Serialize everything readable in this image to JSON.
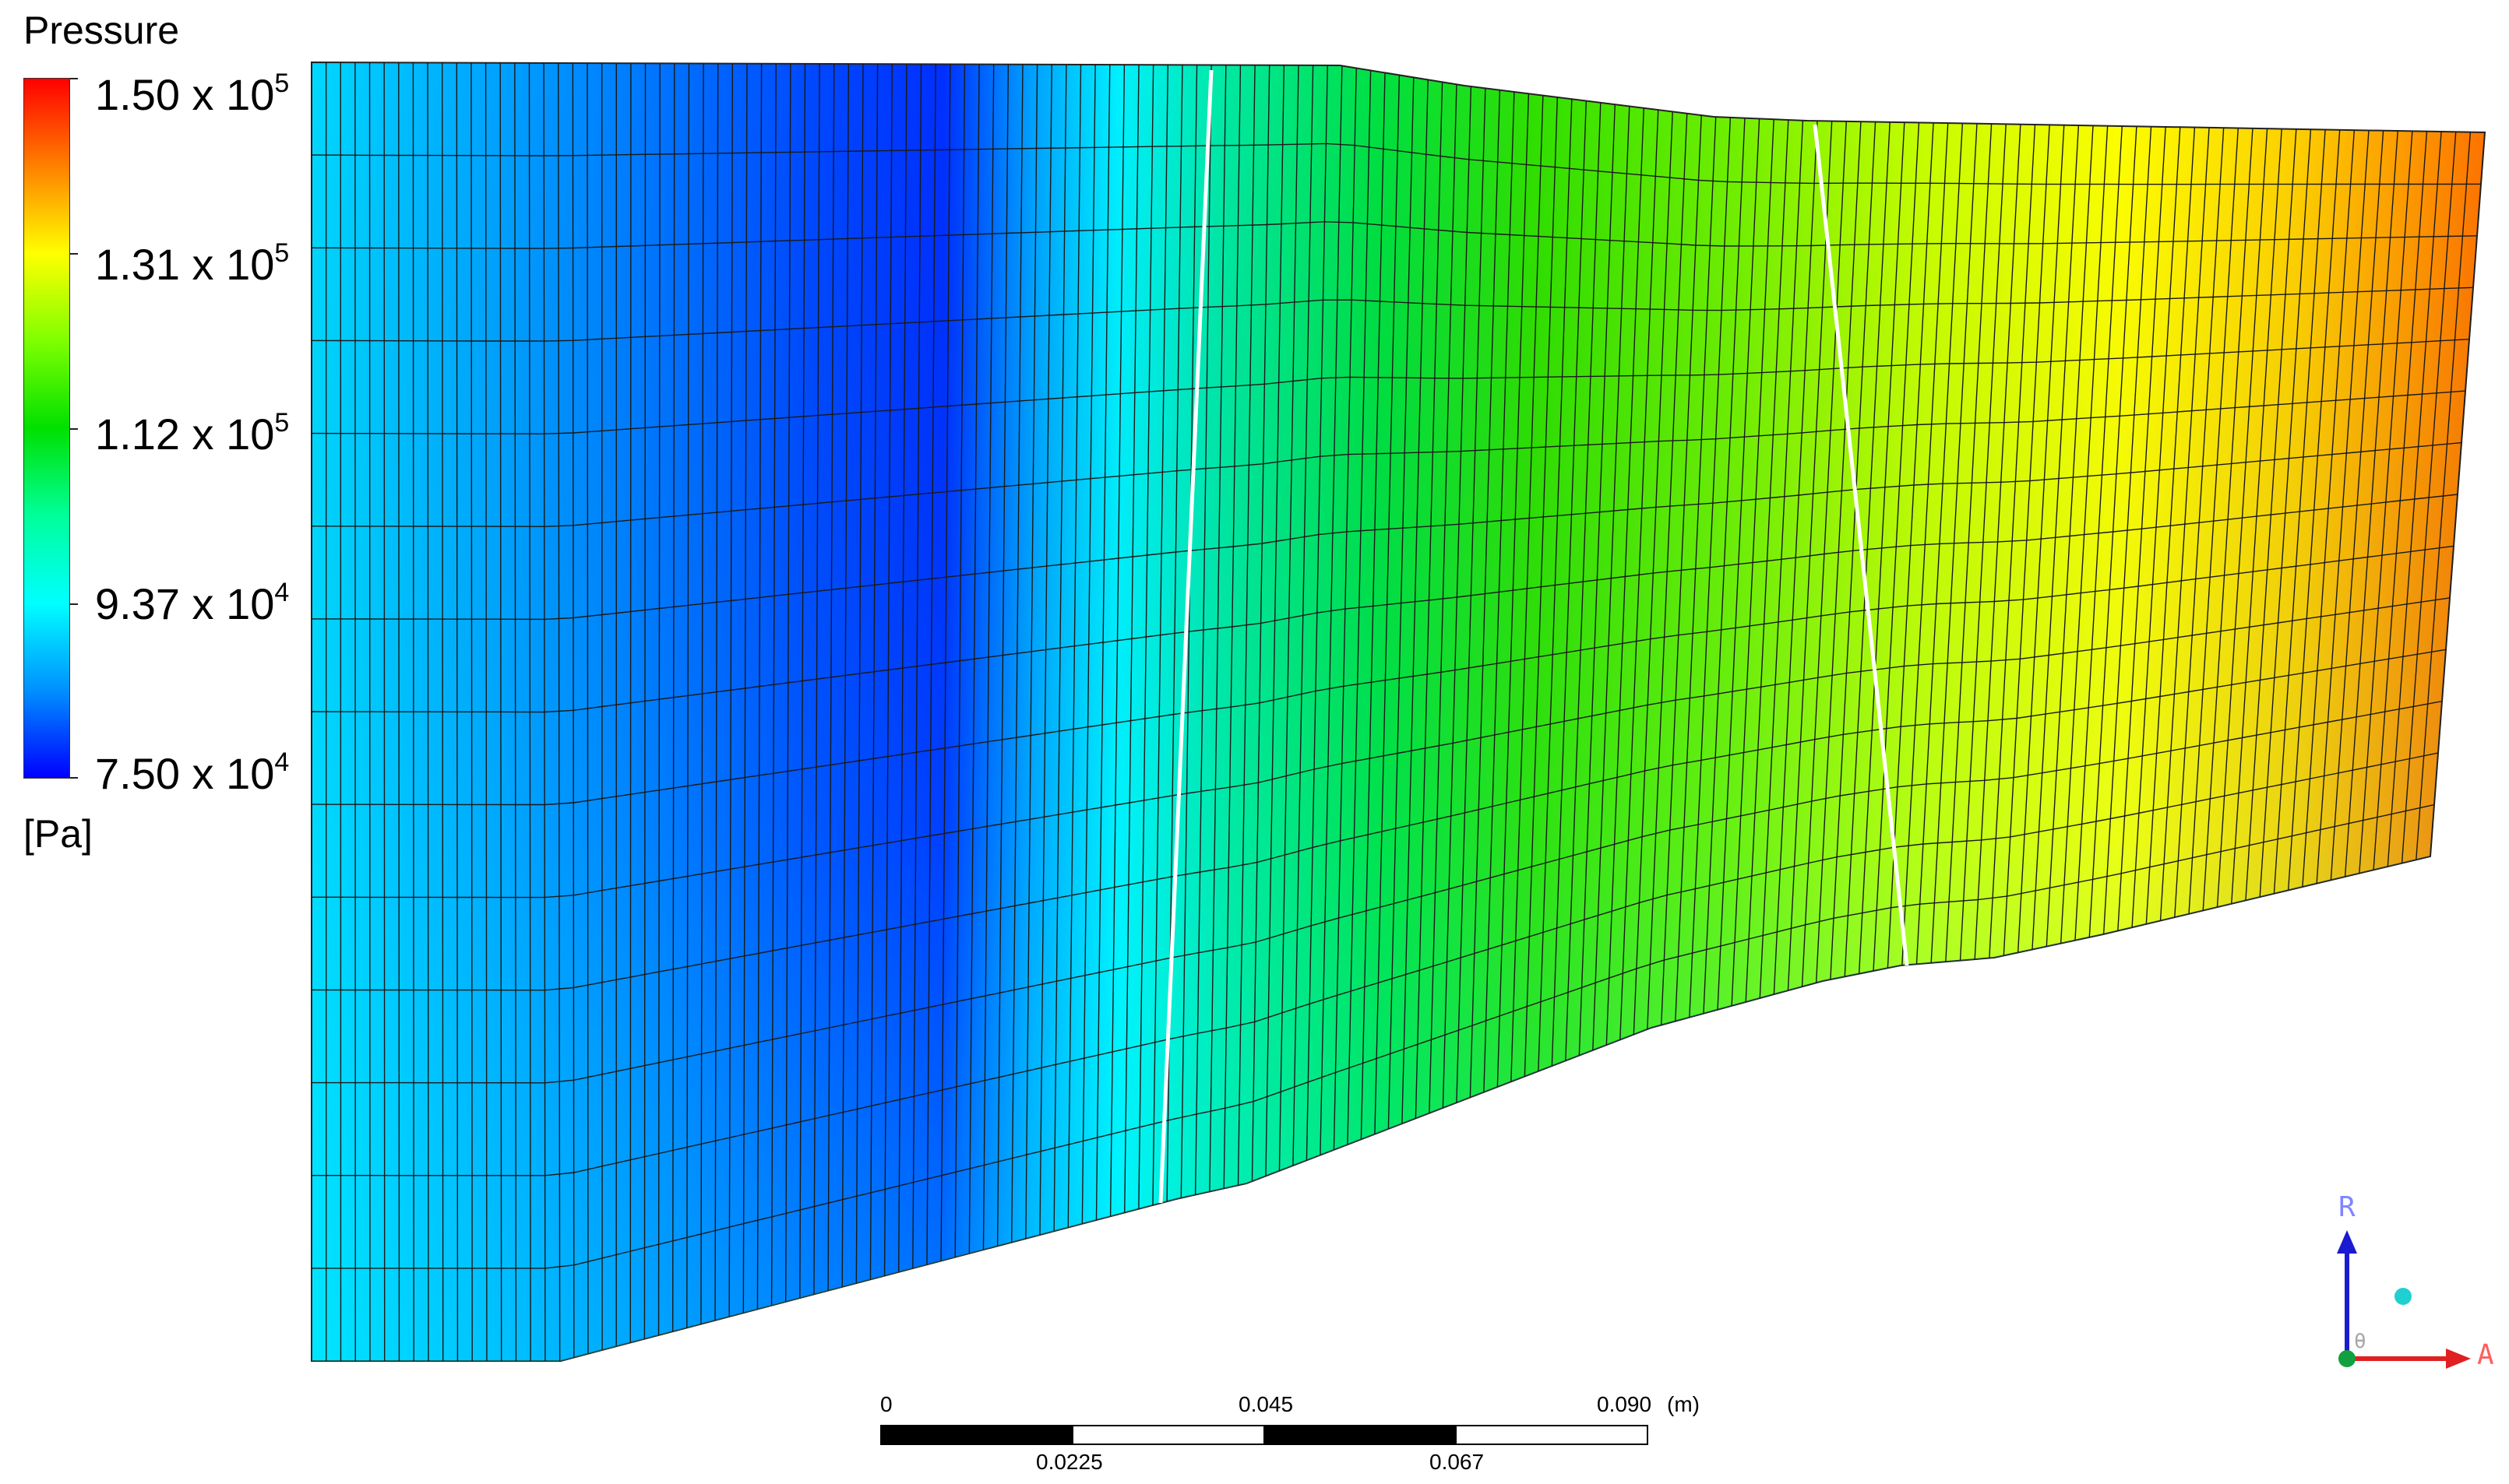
{
  "legend": {
    "title": "Pressure",
    "unit": "[Pa]",
    "ticks": [
      {
        "mantissa": "1.50 x 10",
        "exp": "5"
      },
      {
        "mantissa": "1.31 x 10",
        "exp": "5"
      },
      {
        "mantissa": "1.12 x 10",
        "exp": "5"
      },
      {
        "mantissa": "9.37 x 10",
        "exp": "4"
      },
      {
        "mantissa": "7.50 x 10",
        "exp": "4"
      }
    ],
    "colors": [
      "#ff0000",
      "#ff8000",
      "#ffff00",
      "#7fff00",
      "#00e000",
      "#00ff9a",
      "#00ffff",
      "#0090ff",
      "#0000ff"
    ]
  },
  "scale_bar": {
    "top_labels": [
      "0",
      "0.045",
      "0.090"
    ],
    "unit": "(m)",
    "bottom_labels": [
      "0.0225",
      "0.067"
    ]
  },
  "triad": {
    "r_label": "R",
    "a_label": "A",
    "theta_label": "θ",
    "r_color": "#1a1ad0",
    "a_color": "#e02020",
    "origin_color": "#10a040",
    "sphere_color": "#20d0d0"
  }
}
